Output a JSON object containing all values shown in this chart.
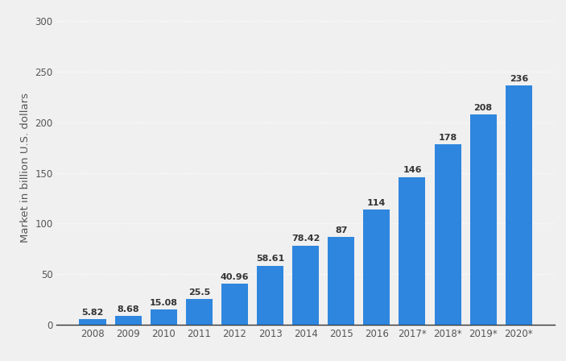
{
  "categories": [
    "2008",
    "2009",
    "2010",
    "2011",
    "2012",
    "2013",
    "2014",
    "2015",
    "2016",
    "2017*",
    "2018*",
    "2019*",
    "2020*"
  ],
  "values": [
    5.82,
    8.68,
    15.08,
    25.5,
    40.96,
    58.61,
    78.42,
    87,
    114,
    146,
    178,
    208,
    236
  ],
  "bar_color": "#2e86de",
  "ylabel": "Market in billion U.S. dollars",
  "ylim": [
    0,
    310
  ],
  "yticks": [
    0,
    50,
    100,
    150,
    200,
    250,
    300
  ],
  "figure_bg": "#f0f0f0",
  "plot_bg": "#f0f0f0",
  "bar_labels": [
    "5.82",
    "8.68",
    "15.08",
    "25.5",
    "40.96",
    "58.61",
    "78.42",
    "87",
    "114",
    "146",
    "178",
    "208",
    "236"
  ],
  "grid_color": "#ffffff",
  "label_fontsize": 8.0,
  "ylabel_fontsize": 9.5,
  "tick_fontsize": 8.5,
  "bar_width": 0.75
}
